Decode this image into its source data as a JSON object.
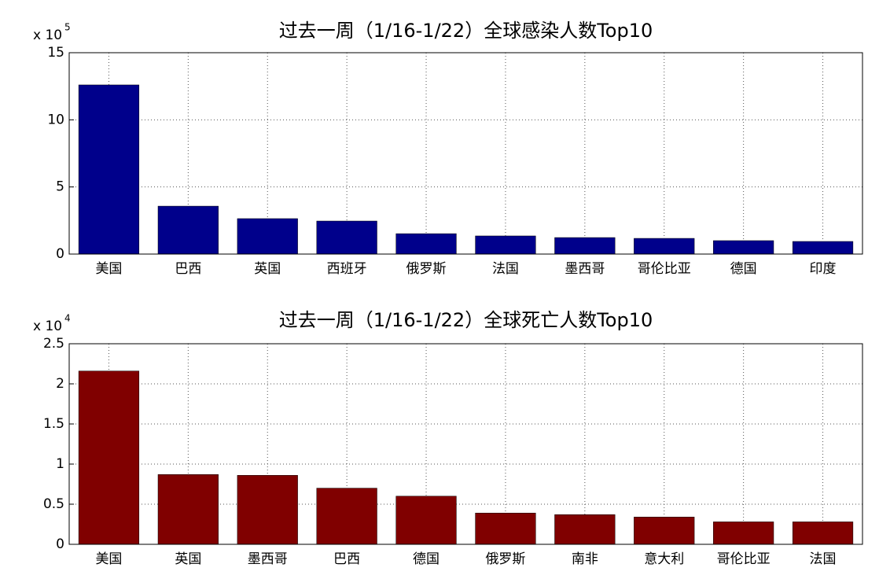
{
  "chart_data": [
    {
      "type": "bar",
      "title": "过去一周（1/16-1/22）全球感染人数Top10",
      "categories": [
        "美国",
        "巴西",
        "英国",
        "西班牙",
        "俄罗斯",
        "法国",
        "墨西哥",
        "哥伦比亚",
        "德国",
        "印度"
      ],
      "values": [
        12.6,
        3.57,
        2.64,
        2.46,
        1.52,
        1.35,
        1.23,
        1.17,
        1.0,
        0.94
      ],
      "color": "#00008b",
      "ylim": [
        0,
        15
      ],
      "yticks": [
        0,
        5,
        10,
        15
      ],
      "grid": true,
      "y_scale_base": "x 10",
      "y_scale_exponent": 5
    },
    {
      "type": "bar",
      "title": "过去一周（1/16-1/22）全球死亡人数Top10",
      "categories": [
        "美国",
        "英国",
        "墨西哥",
        "巴西",
        "德国",
        "俄罗斯",
        "南非",
        "意大利",
        "哥伦比亚",
        "法国"
      ],
      "values": [
        2.16,
        0.87,
        0.86,
        0.7,
        0.6,
        0.39,
        0.37,
        0.34,
        0.28,
        0.28
      ],
      "color": "#800000",
      "ylim": [
        0,
        2.5
      ],
      "yticks": [
        0,
        0.5,
        1,
        1.5,
        2,
        2.5
      ],
      "grid": true,
      "y_scale_base": "x 10",
      "y_scale_exponent": 4
    }
  ]
}
